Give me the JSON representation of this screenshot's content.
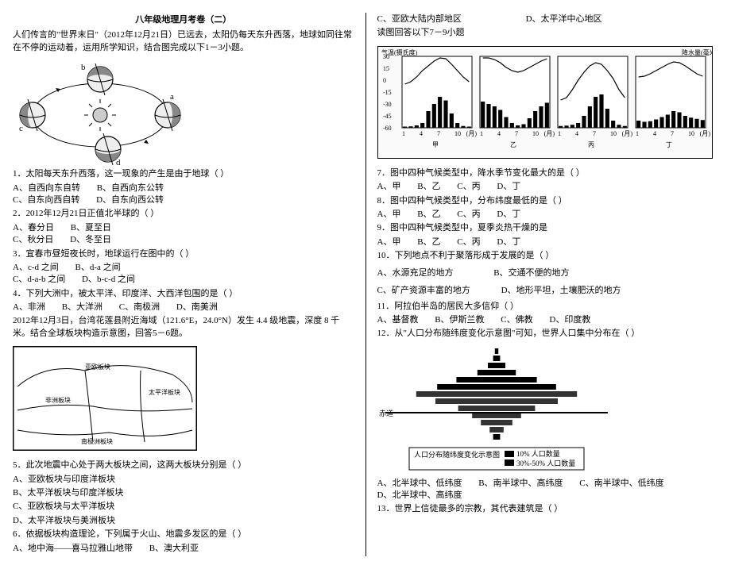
{
  "title": "八年级地理月考卷（二）",
  "intro": "人们传言的\"世界末日\"（2012年12月21日）已远去，太阳仍每天东升西落，地球如同往常在不停的运动着，运用所学知识，结合图完成以下1－3小题。",
  "orbit": {
    "labels": {
      "a": "a",
      "b": "b",
      "c": "c",
      "d": "d"
    }
  },
  "q1": {
    "stem": "1．太阳每天东升西落，这一现象的产生是由于地球（   ）",
    "opts": {
      "A": "A、自西向东自转",
      "B": "B、自西向东公转",
      "C": "C、自东向西自转",
      "D": "D、自东向西公转"
    }
  },
  "q2": {
    "stem": "2．2012年12月21日正值北半球的（   ）",
    "opts": {
      "A": "A、春分日",
      "B": "B、夏至日",
      "C": "C、秋分日",
      "D": "D、冬至日"
    }
  },
  "q3": {
    "stem": "3．宜春市昼短夜长时，地球运行在图中的（   ）",
    "opts": {
      "A": "A、c-d 之间",
      "B": "B、d-a 之间",
      "C": "C、d-a-b 之间",
      "D": "D、b-c-d 之间"
    }
  },
  "q4": {
    "stem": "4．下列大洲中，被太平洋、印度洋、大西洋包围的是（   ）",
    "opts": {
      "A": "A、非洲",
      "B": "B、大洋洲",
      "C": "C、南极洲",
      "D": "D、南美洲"
    }
  },
  "plates_intro": "2012年12月3日，台湾花莲县附近海域（121.6°E，24.0°N）发生 4.4 级地震，深度 8 千米。结合全球板块构造示意图，回答5－6题。",
  "map_labels": {
    "euAsia": "亚欧板块",
    "pac": "太平洋板块",
    "af": "非洲板块",
    "ant": "南极洲板块"
  },
  "q5": {
    "stem": "5．此次地震中心处于两大板块之间，这两大板块分别是（   ）",
    "opts": {
      "A": "A、亚欧板块与印度洋板块",
      "B": "B、太平洋板块与印度洋板块",
      "C": "C、亚欧板块与太平洋板块",
      "D": "D、太平洋板块与美洲板块"
    }
  },
  "q6": {
    "stem": "6．依据板块构造理论，下列属于火山、地震多发区的是（   ）",
    "row1": {
      "A": "A、地中海——喜马拉雅山地带",
      "B": "B、澳大利亚"
    },
    "row2": {
      "C": "C、亚欧大陆内部地区",
      "D": "D、太平洋中心地区"
    }
  },
  "clim_intro": "读图回答以下7－9小题",
  "clim": {
    "panels": [
      "甲",
      "乙",
      "丙",
      "丁"
    ],
    "y_temp_label": "气温(摄氏度)",
    "y_prec_label": "降水量(毫米)",
    "temp_ticks": [
      "30",
      "15",
      "0",
      "-15",
      "-30",
      "-45",
      "-60"
    ],
    "prec_ticks": [
      "600",
      "500",
      "400",
      "300",
      "200",
      "100",
      "0"
    ],
    "x_ticks": [
      "1",
      "4",
      "7",
      "10",
      "(月)"
    ],
    "precip": {
      "甲": [
        10,
        12,
        20,
        40,
        140,
        200,
        260,
        230,
        120,
        40,
        15,
        10
      ],
      "乙": [
        220,
        200,
        180,
        150,
        90,
        40,
        20,
        30,
        80,
        140,
        180,
        210
      ],
      "丙": [
        15,
        18,
        25,
        40,
        100,
        180,
        260,
        280,
        160,
        60,
        25,
        15
      ],
      "丁": [
        60,
        50,
        55,
        70,
        90,
        110,
        140,
        130,
        100,
        85,
        75,
        65
      ]
    },
    "prec_max": 600,
    "temp": {
      "甲": [
        -5,
        -2,
        4,
        12,
        18,
        24,
        28,
        27,
        20,
        12,
        4,
        -2
      ],
      "乙": [
        28,
        28,
        26,
        22,
        16,
        12,
        10,
        12,
        16,
        20,
        24,
        27
      ],
      "丙": [
        -25,
        -22,
        -12,
        0,
        10,
        18,
        22,
        20,
        12,
        2,
        -12,
        -22
      ],
      "丁": [
        4,
        5,
        8,
        12,
        16,
        20,
        23,
        22,
        18,
        13,
        8,
        5
      ]
    },
    "temp_min": -60,
    "temp_max": 30
  },
  "q7": {
    "stem": "7．图中四种气候类型中，降水季节变化最大的是（   ）",
    "opts": {
      "A": "A、甲",
      "B": "B、乙",
      "C": "C、丙",
      "D": "D、丁"
    }
  },
  "q8": {
    "stem": "8．图中四种气候类型中，分布纬度最低的是（   ）",
    "opts": {
      "A": "A、甲",
      "B": "B、乙",
      "C": "C、丙",
      "D": "D、丁"
    }
  },
  "q9": {
    "stem": "9．图中四种气候类型中，夏季炎热干燥的是",
    "opts": {
      "A": "A、甲",
      "B": "B、乙",
      "C": "C、丙",
      "D": "D、丁"
    }
  },
  "q10": {
    "stem": "10．下列地点不利于聚落形成于发展的是（   ）",
    "opts": {
      "A": "A、水源充足的地方",
      "B": "B、交通不便的地方",
      "C": "C、矿产资源丰富的地方",
      "D": "D、地形平坦，土壤肥沃的地方"
    }
  },
  "q11": {
    "stem": "11．阿拉伯半岛的居民大多信仰（   ）",
    "opts": {
      "A": "A、基督教",
      "B": "B、伊斯兰教",
      "C": "C、佛教",
      "D": "D、印度教"
    }
  },
  "q12": {
    "stem": "12．从\"人口分布随纬度变化示意图\"可知，世界人口集中分布在（   ）",
    "opts": {
      "A": "A、北半球中、低纬度",
      "B": "B、南半球中、高纬度",
      "C": "C、南半球中、低纬度",
      "D": "D、北半球中、高纬度"
    }
  },
  "pyramid": {
    "equator_label": "赤道",
    "legend_l": "人口分布随纬度变化示意图",
    "legend_r1": "10% 人口数量",
    "legend_r2": "30%-50% 人口数量",
    "rows": [
      {
        "lat": 85,
        "w": 0.02
      },
      {
        "lat": 75,
        "w": 0.04
      },
      {
        "lat": 65,
        "w": 0.1
      },
      {
        "lat": 55,
        "w": 0.22
      },
      {
        "lat": 45,
        "w": 0.46
      },
      {
        "lat": 35,
        "w": 0.68
      },
      {
        "lat": 25,
        "w": 0.92
      },
      {
        "lat": 15,
        "w": 0.7
      },
      {
        "lat": 5,
        "w": 0.44
      },
      {
        "lat": -5,
        "w": 0.28
      },
      {
        "lat": -15,
        "w": 0.18
      },
      {
        "lat": -25,
        "w": 0.08
      },
      {
        "lat": -35,
        "w": 0.04
      }
    ]
  },
  "q13": {
    "stem": "13．世界上信徒最多的宗教，其代表建筑是（   ）"
  }
}
